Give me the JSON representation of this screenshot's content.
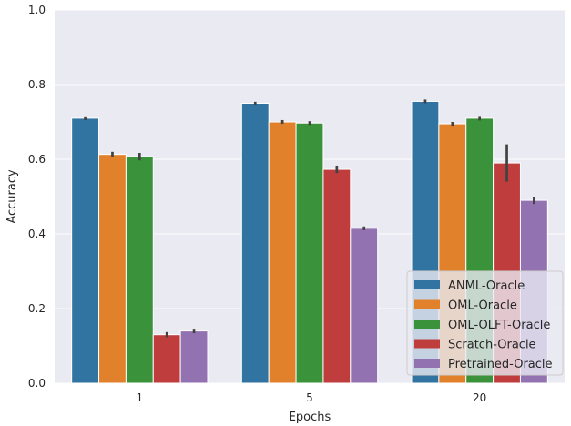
{
  "chart_data": {
    "type": "bar",
    "xlabel": "Epochs",
    "ylabel": "Accuracy",
    "categories": [
      "1",
      "5",
      "20"
    ],
    "ylim": [
      0,
      1.0
    ],
    "yticks": [
      "0.0",
      "0.2",
      "0.4",
      "0.6",
      "0.8",
      "1.0"
    ],
    "grid": true,
    "legend_position": "lower-right",
    "series": [
      {
        "name": "ANML-Oracle",
        "color": "#3274a1",
        "values": [
          0.71,
          0.75,
          0.755
        ],
        "err": [
          0.005,
          0.004,
          0.005
        ]
      },
      {
        "name": "OML-Oracle",
        "color": "#e1812c",
        "values": [
          0.613,
          0.7,
          0.695
        ],
        "err": [
          0.007,
          0.005,
          0.005
        ]
      },
      {
        "name": "OML-OLFT-Oracle",
        "color": "#3a923a",
        "values": [
          0.607,
          0.697,
          0.71
        ],
        "err": [
          0.01,
          0.005,
          0.006
        ]
      },
      {
        "name": "Scratch-Oracle",
        "color": "#c03d3e",
        "values": [
          0.13,
          0.573,
          0.59
        ],
        "err": [
          0.007,
          0.01,
          0.05
        ]
      },
      {
        "name": "Pretrained-Oracle",
        "color": "#9372b2",
        "values": [
          0.14,
          0.415,
          0.49
        ],
        "err": [
          0.006,
          0.005,
          0.01
        ]
      }
    ]
  }
}
